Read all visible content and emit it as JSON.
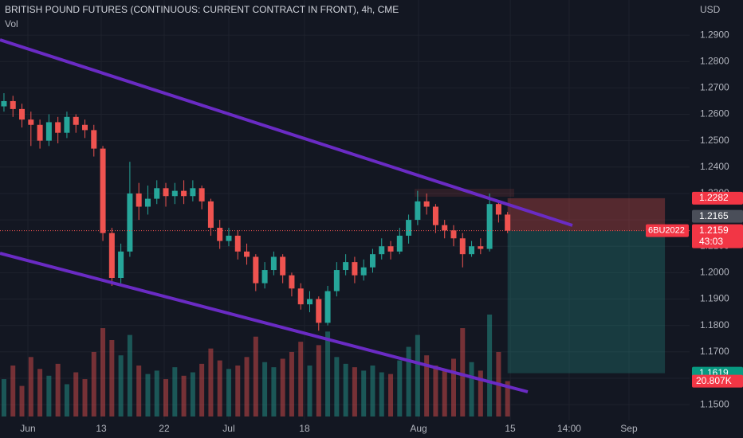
{
  "chart_data": {
    "type": "candlestick",
    "title": "BRITISH POUND FUTURES (CONTINUOUS: CURRENT CONTRACT IN FRONT), 4h, CME",
    "currency": "USD",
    "up_color": "#26a69a",
    "down_color": "#ef5350",
    "grid": true,
    "x": [
      0,
      1,
      2,
      3,
      4,
      5,
      6,
      7,
      8,
      9,
      10,
      11,
      12,
      13,
      14,
      15,
      16,
      17,
      18,
      19,
      20,
      21,
      22,
      23,
      24,
      25,
      26,
      27,
      28,
      29,
      30,
      31,
      32,
      33,
      34,
      35,
      36,
      37,
      38,
      39,
      40,
      41,
      42,
      43,
      44,
      45,
      46,
      47,
      48,
      49,
      50,
      51,
      52,
      53,
      54,
      55,
      56
    ],
    "candles": [
      [
        1.263,
        1.268,
        1.261,
        1.265
      ],
      [
        1.265,
        1.267,
        1.259,
        1.262
      ],
      [
        1.262,
        1.264,
        1.255,
        1.258
      ],
      [
        1.258,
        1.261,
        1.248,
        1.256
      ],
      [
        1.256,
        1.258,
        1.247,
        1.25
      ],
      [
        1.25,
        1.26,
        1.248,
        1.257
      ],
      [
        1.257,
        1.259,
        1.249,
        1.253
      ],
      [
        1.253,
        1.261,
        1.251,
        1.259
      ],
      [
        1.259,
        1.26,
        1.253,
        1.256
      ],
      [
        1.256,
        1.258,
        1.251,
        1.254
      ],
      [
        1.254,
        1.256,
        1.244,
        1.247
      ],
      [
        1.247,
        1.248,
        1.212,
        1.215
      ],
      [
        1.215,
        1.217,
        1.195,
        1.198
      ],
      [
        1.198,
        1.211,
        1.196,
        1.208
      ],
      [
        1.208,
        1.242,
        1.206,
        1.23
      ],
      [
        1.23,
        1.234,
        1.22,
        1.225
      ],
      [
        1.225,
        1.233,
        1.222,
        1.228
      ],
      [
        1.228,
        1.235,
        1.226,
        1.232
      ],
      [
        1.232,
        1.234,
        1.225,
        1.229
      ],
      [
        1.229,
        1.234,
        1.226,
        1.231
      ],
      [
        1.231,
        1.235,
        1.226,
        1.229
      ],
      [
        1.229,
        1.235,
        1.227,
        1.232
      ],
      [
        1.232,
        1.233,
        1.224,
        1.227
      ],
      [
        1.227,
        1.228,
        1.214,
        1.217
      ],
      [
        1.217,
        1.22,
        1.209,
        1.212
      ],
      [
        1.212,
        1.217,
        1.21,
        1.214
      ],
      [
        1.214,
        1.216,
        1.205,
        1.208
      ],
      [
        1.208,
        1.211,
        1.203,
        1.206
      ],
      [
        1.206,
        1.207,
        1.193,
        1.196
      ],
      [
        1.196,
        1.204,
        1.194,
        1.201
      ],
      [
        1.201,
        1.208,
        1.199,
        1.206
      ],
      [
        1.206,
        1.207,
        1.196,
        1.199
      ],
      [
        1.199,
        1.2,
        1.191,
        1.194
      ],
      [
        1.194,
        1.196,
        1.186,
        1.188
      ],
      [
        1.188,
        1.193,
        1.185,
        1.19
      ],
      [
        1.19,
        1.191,
        1.178,
        1.181
      ],
      [
        1.181,
        1.195,
        1.18,
        1.193
      ],
      [
        1.193,
        1.204,
        1.191,
        1.201
      ],
      [
        1.201,
        1.207,
        1.199,
        1.204
      ],
      [
        1.204,
        1.206,
        1.196,
        1.199
      ],
      [
        1.199,
        1.205,
        1.197,
        1.202
      ],
      [
        1.202,
        1.209,
        1.2,
        1.207
      ],
      [
        1.207,
        1.213,
        1.205,
        1.21
      ],
      [
        1.21,
        1.212,
        1.205,
        1.208
      ],
      [
        1.208,
        1.217,
        1.207,
        1.214
      ],
      [
        1.214,
        1.222,
        1.211,
        1.22
      ],
      [
        1.22,
        1.231,
        1.218,
        1.227
      ],
      [
        1.227,
        1.23,
        1.222,
        1.225
      ],
      [
        1.225,
        1.226,
        1.215,
        1.218
      ],
      [
        1.218,
        1.22,
        1.213,
        1.216
      ],
      [
        1.216,
        1.218,
        1.21,
        1.213
      ],
      [
        1.213,
        1.215,
        1.202,
        1.207
      ],
      [
        1.207,
        1.212,
        1.206,
        1.21
      ],
      [
        1.21,
        1.213,
        1.207,
        1.209
      ],
      [
        1.209,
        1.23,
        1.208,
        1.226
      ],
      [
        1.226,
        1.227,
        1.219,
        1.222
      ],
      [
        1.222,
        1.223,
        1.215,
        1.2159
      ]
    ],
    "volume": {
      "name": "Vol",
      "values": [
        22000,
        30000,
        18000,
        35000,
        28000,
        24000,
        31000,
        19000,
        26000,
        22000,
        38000,
        52000,
        45000,
        36000,
        48000,
        30000,
        25000,
        27000,
        22000,
        29000,
        24000,
        26000,
        31000,
        40000,
        33000,
        28000,
        30000,
        35000,
        47000,
        32000,
        29000,
        34000,
        38000,
        44000,
        30000,
        42000,
        50000,
        35000,
        31000,
        29000,
        27000,
        30000,
        26000,
        25000,
        33000,
        41000,
        48000,
        36000,
        30000,
        28000,
        34000,
        52000,
        32000,
        27000,
        60000,
        38000,
        20807
      ],
      "last_label": {
        "value": 20807,
        "label": "20.807K"
      }
    },
    "xlim": [
      -0.44,
      76.24
    ],
    "xticks": [
      {
        "value": 2.66,
        "label": "Jun"
      },
      {
        "value": 10.82,
        "label": "13"
      },
      {
        "value": 17.82,
        "label": "22"
      },
      {
        "value": 25.0,
        "label": "Jul"
      },
      {
        "value": 33.42,
        "label": "18"
      },
      {
        "value": 46.1,
        "label": "Aug"
      },
      {
        "value": 56.3,
        "label": "15"
      },
      {
        "value": 62.85,
        "label": "14:00"
      },
      {
        "value": 69.5,
        "label": "Sep"
      }
    ],
    "ylim": [
      1.1455,
      1.3033
    ],
    "yticks": [
      {
        "value": 1.29,
        "label": "1.2900"
      },
      {
        "value": 1.28,
        "label": "1.2800"
      },
      {
        "value": 1.27,
        "label": "1.2700"
      },
      {
        "value": 1.26,
        "label": "1.2600"
      },
      {
        "value": 1.25,
        "label": "1.2500"
      },
      {
        "value": 1.24,
        "label": "1.2400"
      },
      {
        "value": 1.23,
        "label": "1.2300"
      },
      {
        "value": 1.22,
        "label": "1.2200"
      },
      {
        "value": 1.21,
        "label": "1.2100"
      },
      {
        "value": 1.2,
        "label": "1.2000"
      },
      {
        "value": 1.19,
        "label": "1.1900"
      },
      {
        "value": 1.18,
        "label": "1.1800"
      },
      {
        "value": 1.17,
        "label": "1.1700"
      },
      {
        "value": 1.16,
        "label": "1.1600"
      },
      {
        "value": 1.15,
        "label": "1.1500"
      }
    ],
    "position": {
      "x": [
        56,
        73.5
      ],
      "stop": 1.2282,
      "entry": 1.2159,
      "target": 1.1619
    },
    "previous_close": 1.2165,
    "last_price": {
      "symbol": "6BU2022",
      "value": 1.2159,
      "countdown": "43:03"
    }
  }
}
